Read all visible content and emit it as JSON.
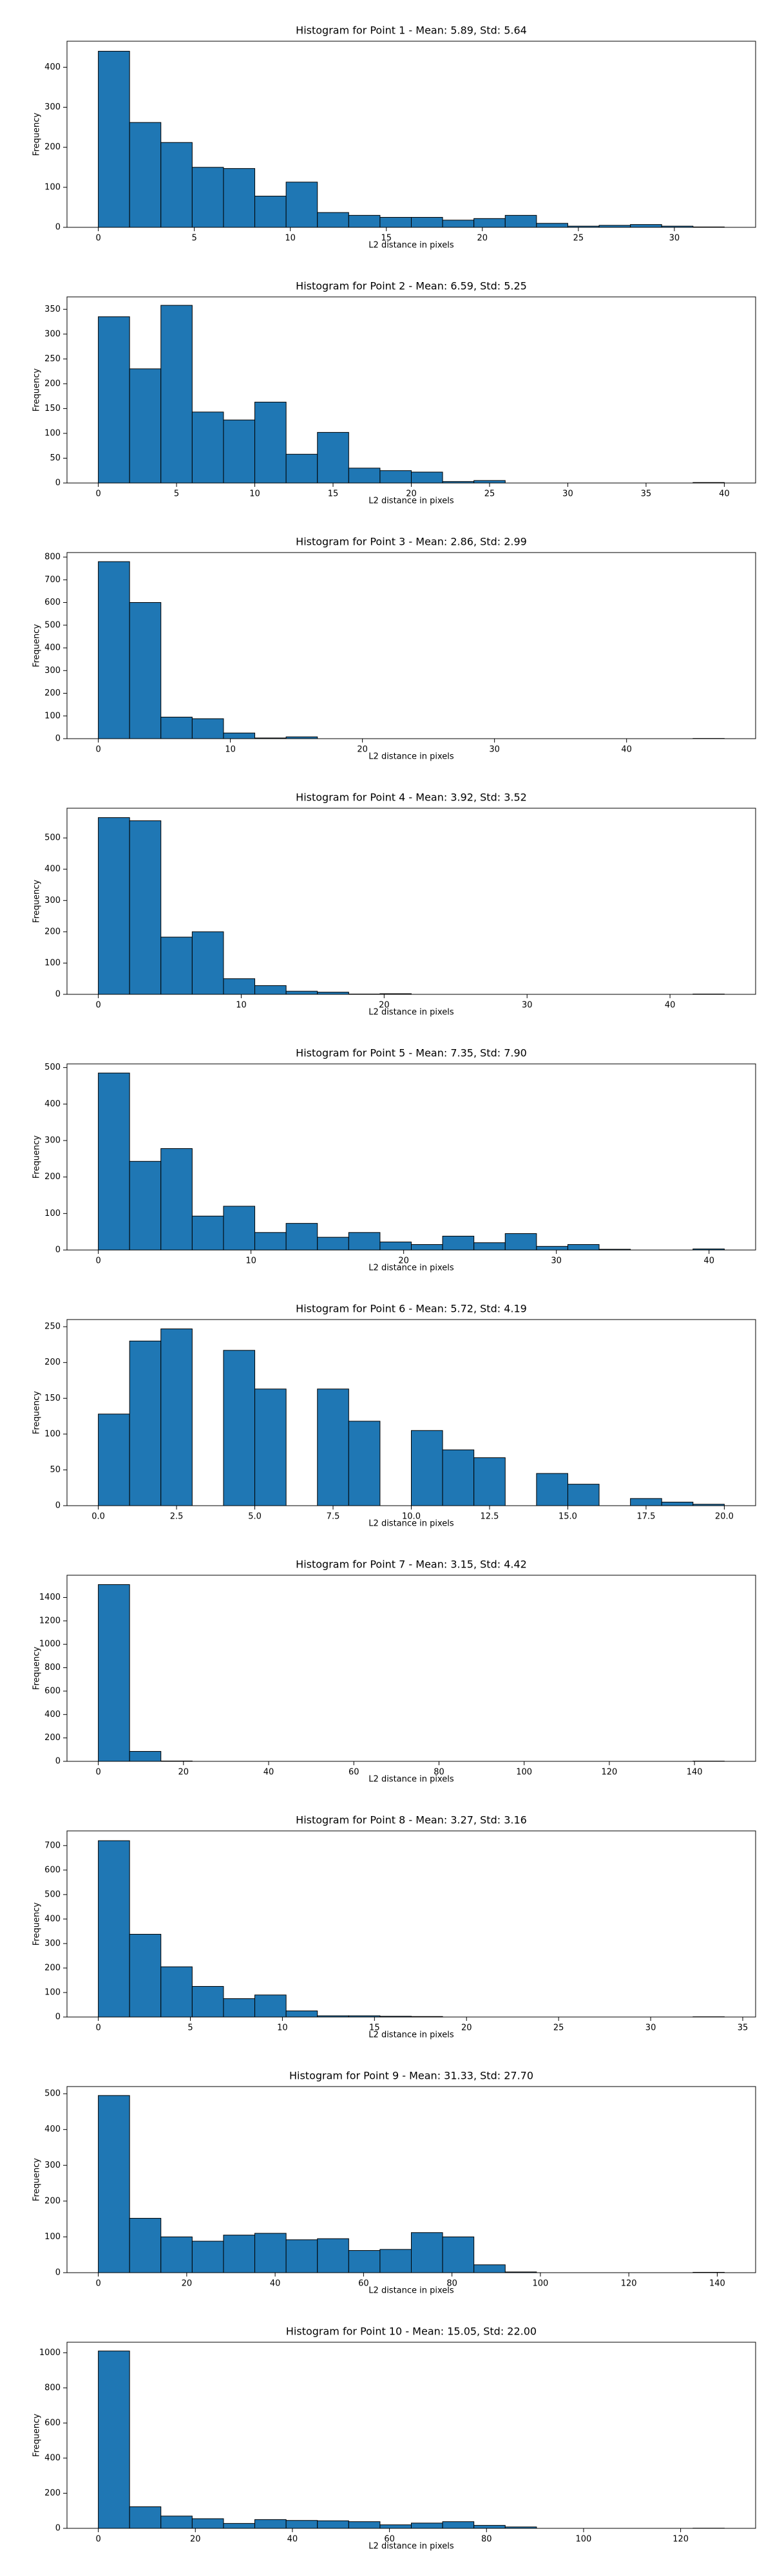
{
  "chart_data": [
    {
      "type": "histogram",
      "title": "Histogram for Point 1 - Mean: 5.89, Std: 5.64",
      "xlabel": "L2 distance in pixels",
      "ylabel": "Frequency",
      "color": "#1f77b4",
      "edgecolor": "#000000",
      "bins": [
        0,
        1.63,
        3.26,
        4.89,
        6.52,
        8.15,
        9.78,
        11.41,
        13.04,
        14.67,
        16.3,
        17.93,
        19.56,
        21.19,
        22.82,
        24.45,
        26.08,
        27.71,
        29.34,
        30.97,
        32.6
      ],
      "values": [
        440,
        262,
        212,
        150,
        147,
        78,
        113,
        37,
        30,
        25,
        25,
        18,
        22,
        30,
        10,
        3,
        5,
        7,
        3,
        1
      ],
      "xlim": [
        -1.63,
        34.23
      ],
      "ylim": [
        0,
        465
      ],
      "xticks": [
        0,
        5,
        10,
        15,
        20,
        25,
        30
      ],
      "yticks": [
        0,
        100,
        200,
        300,
        400
      ]
    },
    {
      "type": "histogram",
      "title": "Histogram for Point 2 - Mean: 6.59, Std: 5.25",
      "xlabel": "L2 distance in pixels",
      "ylabel": "Frequency",
      "color": "#1f77b4",
      "edgecolor": "#000000",
      "bins": [
        0,
        2,
        4,
        6,
        8,
        10,
        12,
        14,
        16,
        18,
        20,
        22,
        24,
        26,
        28,
        30,
        32,
        34,
        36,
        38,
        40
      ],
      "values": [
        335,
        230,
        358,
        143,
        127,
        163,
        58,
        102,
        30,
        25,
        22,
        3,
        5,
        0,
        0,
        0,
        0,
        0,
        0,
        1
      ],
      "xlim": [
        -2,
        42
      ],
      "ylim": [
        0,
        375
      ],
      "xticks": [
        0,
        5,
        10,
        15,
        20,
        25,
        30,
        35,
        40
      ],
      "yticks": [
        0,
        50,
        100,
        150,
        200,
        250,
        300,
        350
      ]
    },
    {
      "type": "histogram",
      "title": "Histogram for Point 3 - Mean: 2.86, Std: 2.99",
      "xlabel": "L2 distance in pixels",
      "ylabel": "Frequency",
      "color": "#1f77b4",
      "edgecolor": "#000000",
      "bins": [
        0,
        2.37,
        4.74,
        7.11,
        9.48,
        11.85,
        14.22,
        16.59,
        18.96,
        21.33,
        23.7,
        26.07,
        28.44,
        30.81,
        33.18,
        35.55,
        37.92,
        40.29,
        42.66,
        45.03,
        47.4
      ],
      "values": [
        780,
        600,
        95,
        88,
        25,
        3,
        8,
        0,
        0,
        0,
        0,
        0,
        0,
        0,
        0,
        0,
        0,
        0,
        0,
        1
      ],
      "xlim": [
        -2.37,
        49.77
      ],
      "ylim": [
        0,
        820
      ],
      "xticks": [
        0,
        10,
        20,
        30,
        40
      ],
      "yticks": [
        0,
        100,
        200,
        300,
        400,
        500,
        600,
        700,
        800
      ]
    },
    {
      "type": "histogram",
      "title": "Histogram for Point 4 - Mean: 3.92, Std: 3.52",
      "xlabel": "L2 distance in pixels",
      "ylabel": "Frequency",
      "color": "#1f77b4",
      "edgecolor": "#000000",
      "bins": [
        0,
        2.19,
        4.38,
        6.57,
        8.76,
        10.95,
        13.14,
        15.33,
        17.52,
        19.71,
        21.9,
        24.09,
        26.28,
        28.47,
        30.66,
        32.85,
        35.04,
        37.23,
        39.42,
        41.61,
        43.8
      ],
      "values": [
        565,
        555,
        183,
        200,
        50,
        28,
        10,
        7,
        1,
        2,
        0,
        0,
        0,
        0,
        0,
        0,
        0,
        0,
        0,
        1
      ],
      "xlim": [
        -2.19,
        45.99
      ],
      "ylim": [
        0,
        595
      ],
      "xticks": [
        0,
        10,
        20,
        30,
        40
      ],
      "yticks": [
        0,
        100,
        200,
        300,
        400,
        500
      ]
    },
    {
      "type": "histogram",
      "title": "Histogram for Point 5 - Mean: 7.35, Std: 7.90",
      "xlabel": "L2 distance in pixels",
      "ylabel": "Frequency",
      "color": "#1f77b4",
      "edgecolor": "#000000",
      "bins": [
        0,
        2.05,
        4.1,
        6.15,
        8.2,
        10.25,
        12.3,
        14.35,
        16.4,
        18.45,
        20.5,
        22.55,
        24.6,
        26.65,
        28.7,
        30.75,
        32.8,
        34.85,
        36.9,
        38.95,
        41
      ],
      "values": [
        485,
        243,
        278,
        93,
        120,
        48,
        73,
        35,
        48,
        22,
        15,
        38,
        20,
        45,
        10,
        15,
        2,
        0,
        0,
        3
      ],
      "xlim": [
        -2.05,
        43.05
      ],
      "ylim": [
        0,
        510
      ],
      "xticks": [
        0,
        10,
        20,
        30,
        40
      ],
      "yticks": [
        0,
        100,
        200,
        300,
        400,
        500
      ]
    },
    {
      "type": "histogram",
      "title": "Histogram for Point 6 - Mean: 5.72, Std: 4.19",
      "xlabel": "L2 distance in pixels",
      "ylabel": "Frequency",
      "color": "#1f77b4",
      "edgecolor": "#000000",
      "bins": [
        0,
        1,
        2,
        3,
        4,
        5,
        6,
        7,
        8,
        9,
        10,
        11,
        12,
        13,
        14,
        15,
        16,
        17,
        18,
        19,
        20
      ],
      "values": [
        128,
        230,
        247,
        0,
        217,
        163,
        0,
        163,
        118,
        0,
        105,
        78,
        67,
        0,
        45,
        30,
        0,
        10,
        5,
        2
      ],
      "xlim": [
        -1,
        21
      ],
      "ylim": [
        0,
        260
      ],
      "xticks": [
        {
          "value": 0,
          "label": "0.0"
        },
        {
          "value": 2.5,
          "label": "2.5"
        },
        {
          "value": 5,
          "label": "5.0"
        },
        {
          "value": 7.5,
          "label": "7.5"
        },
        {
          "value": 10,
          "label": "10.0"
        },
        {
          "value": 12.5,
          "label": "12.5"
        },
        {
          "value": 15,
          "label": "15.0"
        },
        {
          "value": 17.5,
          "label": "17.5"
        },
        {
          "value": 20,
          "label": "20.0"
        }
      ],
      "yticks": [
        0,
        50,
        100,
        150,
        200,
        250
      ]
    },
    {
      "type": "histogram",
      "title": "Histogram for Point 7 - Mean: 3.15, Std: 4.42",
      "xlabel": "L2 distance in pixels",
      "ylabel": "Frequency",
      "color": "#1f77b4",
      "edgecolor": "#000000",
      "bins": [
        0,
        7.35,
        14.7,
        22.05,
        29.4,
        36.75,
        44.1,
        51.45,
        58.8,
        66.15,
        73.5,
        80.85,
        88.2,
        95.55,
        102.9,
        110.25,
        117.6,
        124.95,
        132.3,
        139.65,
        147
      ],
      "values": [
        1510,
        85,
        3,
        0,
        0,
        0,
        0,
        0,
        0,
        0,
        0,
        0,
        0,
        0,
        0,
        0,
        0,
        0,
        0,
        2
      ],
      "xlim": [
        -7.35,
        154.35
      ],
      "ylim": [
        0,
        1590
      ],
      "xticks": [
        0,
        20,
        40,
        60,
        80,
        100,
        120,
        140
      ],
      "yticks": [
        0,
        200,
        400,
        600,
        800,
        1000,
        1200,
        1400
      ]
    },
    {
      "type": "histogram",
      "title": "Histogram for Point 8 - Mean: 3.27, Std: 3.16",
      "xlabel": "L2 distance in pixels",
      "ylabel": "Frequency",
      "color": "#1f77b4",
      "edgecolor": "#000000",
      "bins": [
        0,
        1.7,
        3.4,
        5.1,
        6.8,
        8.5,
        10.2,
        11.9,
        13.6,
        15.3,
        17,
        18.7,
        20.4,
        22.1,
        23.8,
        25.5,
        27.2,
        28.9,
        30.6,
        32.3,
        34
      ],
      "values": [
        720,
        338,
        205,
        125,
        75,
        90,
        25,
        5,
        5,
        3,
        2,
        0,
        0,
        0,
        0,
        0,
        0,
        0,
        0,
        1
      ],
      "xlim": [
        -1.7,
        35.7
      ],
      "ylim": [
        0,
        760
      ],
      "xticks": [
        0,
        5,
        10,
        15,
        20,
        25,
        30,
        35
      ],
      "yticks": [
        0,
        100,
        200,
        300,
        400,
        500,
        600,
        700
      ]
    },
    {
      "type": "histogram",
      "title": "Histogram for Point 9 - Mean: 31.33, Std: 27.70",
      "xlabel": "L2 distance in pixels",
      "ylabel": "Frequency",
      "color": "#1f77b4",
      "edgecolor": "#000000",
      "bins": [
        0,
        7.08,
        14.16,
        21.24,
        28.32,
        35.4,
        42.48,
        49.56,
        56.64,
        63.72,
        70.8,
        77.88,
        84.96,
        92.04,
        99.12,
        106.2,
        113.28,
        120.36,
        127.44,
        134.52,
        141.6
      ],
      "values": [
        495,
        152,
        100,
        88,
        105,
        110,
        92,
        95,
        62,
        65,
        112,
        100,
        22,
        2,
        0,
        0,
        0,
        0,
        0,
        1
      ],
      "xlim": [
        -7.08,
        148.68
      ],
      "ylim": [
        0,
        520
      ],
      "xticks": [
        0,
        20,
        40,
        60,
        80,
        100,
        120,
        140
      ],
      "yticks": [
        0,
        100,
        200,
        300,
        400,
        500
      ]
    },
    {
      "type": "histogram",
      "title": "Histogram for Point 10 - Mean: 15.05, Std: 22.00",
      "xlabel": "L2 distance in pixels",
      "ylabel": "Frequency",
      "color": "#1f77b4",
      "edgecolor": "#000000",
      "bins": [
        0,
        6.45,
        12.9,
        19.35,
        25.8,
        32.25,
        38.7,
        45.15,
        51.6,
        58.05,
        64.5,
        70.95,
        77.4,
        83.85,
        90.3,
        96.75,
        103.2,
        109.65,
        116.1,
        122.55,
        129
      ],
      "values": [
        1010,
        123,
        70,
        55,
        28,
        50,
        45,
        43,
        38,
        20,
        30,
        38,
        17,
        8,
        0,
        0,
        0,
        0,
        0,
        1
      ],
      "xlim": [
        -6.45,
        135.45
      ],
      "ylim": [
        0,
        1060
      ],
      "xticks": [
        0,
        20,
        40,
        60,
        80,
        100,
        120
      ],
      "yticks": [
        0,
        200,
        400,
        600,
        800,
        1000
      ]
    }
  ]
}
